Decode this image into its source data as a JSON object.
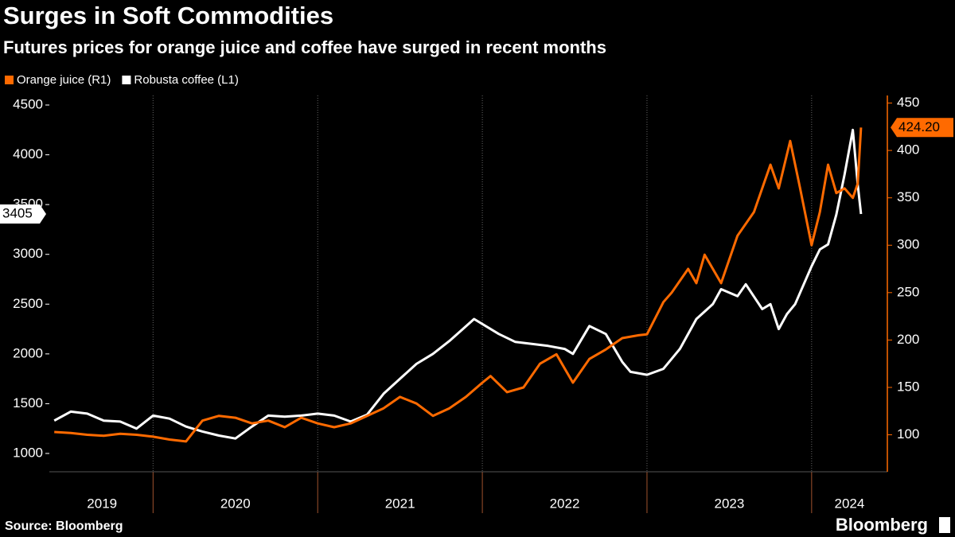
{
  "chart_data": {
    "type": "line",
    "title": "Surges in Soft Commodities",
    "subtitle": "Futures prices for orange juice and coffee have surged in recent months",
    "source": "Source: Bloomberg",
    "brand": "Bloomberg",
    "xlim": [
      2019.37,
      2024.46
    ],
    "xticks": [
      {
        "value": 2019.69,
        "label": "2019"
      },
      {
        "value": 2020.5,
        "label": "2020"
      },
      {
        "value": 2021.5,
        "label": "2021"
      },
      {
        "value": 2022.5,
        "label": "2022"
      },
      {
        "value": 2023.5,
        "label": "2023"
      },
      {
        "value": 2024.23,
        "label": "2024"
      }
    ],
    "year_boundaries": [
      2020,
      2021,
      2022,
      2023,
      2024
    ],
    "ylim": [
      816,
      4596
    ],
    "yticks": [
      1000,
      1500,
      2000,
      2500,
      3000,
      3500,
      4000,
      4500
    ],
    "y2lim": [
      61,
      458
    ],
    "y2ticks": [
      100,
      150,
      200,
      250,
      300,
      350,
      400,
      450
    ],
    "grid": true,
    "series": [
      {
        "name": "Orange juice (R1)",
        "color": "#ff6a00",
        "axis": "y2",
        "x": [
          2019.4,
          2019.5,
          2019.6,
          2019.7,
          2019.8,
          2019.9,
          2020.0,
          2020.1,
          2020.2,
          2020.3,
          2020.4,
          2020.5,
          2020.6,
          2020.7,
          2020.8,
          2020.9,
          2021.0,
          2021.1,
          2021.2,
          2021.3,
          2021.4,
          2021.5,
          2021.6,
          2021.7,
          2021.8,
          2021.9,
          2022.0,
          2022.05,
          2022.15,
          2022.25,
          2022.35,
          2022.45,
          2022.5,
          2022.55,
          2022.65,
          2022.75,
          2022.85,
          2022.95,
          2023.0,
          2023.1,
          2023.15,
          2023.25,
          2023.3,
          2023.35,
          2023.45,
          2023.55,
          2023.65,
          2023.75,
          2023.8,
          2023.87,
          2023.93,
          2024.0,
          2024.05,
          2024.1,
          2024.15,
          2024.2,
          2024.25,
          2024.28,
          2024.3
        ],
        "values": [
          103,
          102,
          100,
          99,
          101,
          100,
          98,
          95,
          93,
          115,
          120,
          118,
          112,
          115,
          108,
          118,
          112,
          108,
          112,
          120,
          128,
          140,
          133,
          120,
          128,
          140,
          155,
          162,
          145,
          150,
          175,
          185,
          170,
          155,
          180,
          190,
          202,
          205,
          206,
          240,
          250,
          275,
          260,
          290,
          260,
          310,
          335,
          385,
          360,
          410,
          360,
          300,
          335,
          385,
          355,
          360,
          350,
          365,
          424.2
        ]
      },
      {
        "name": "Robusta coffee (L1)",
        "color": "#ffffff",
        "axis": "y",
        "x": [
          2019.4,
          2019.5,
          2019.6,
          2019.7,
          2019.8,
          2019.9,
          2020.0,
          2020.1,
          2020.2,
          2020.3,
          2020.4,
          2020.5,
          2020.6,
          2020.7,
          2020.8,
          2020.9,
          2021.0,
          2021.1,
          2021.2,
          2021.3,
          2021.4,
          2021.5,
          2021.6,
          2021.7,
          2021.8,
          2021.95,
          2022.1,
          2022.2,
          2022.3,
          2022.4,
          2022.5,
          2022.55,
          2022.65,
          2022.75,
          2022.85,
          2022.9,
          2023.0,
          2023.1,
          2023.2,
          2023.3,
          2023.4,
          2023.45,
          2023.55,
          2023.6,
          2023.7,
          2023.75,
          2023.8,
          2023.85,
          2023.9,
          2024.0,
          2024.05,
          2024.1,
          2024.15,
          2024.2,
          2024.25,
          2024.28,
          2024.3
        ],
        "values": [
          1330,
          1420,
          1400,
          1330,
          1320,
          1250,
          1380,
          1350,
          1270,
          1220,
          1180,
          1150,
          1270,
          1380,
          1370,
          1380,
          1400,
          1380,
          1320,
          1390,
          1600,
          1750,
          1900,
          2000,
          2130,
          2350,
          2200,
          2120,
          2100,
          2080,
          2050,
          2000,
          2280,
          2200,
          1920,
          1820,
          1790,
          1850,
          2050,
          2350,
          2500,
          2650,
          2580,
          2700,
          2450,
          2500,
          2250,
          2400,
          2500,
          2880,
          3050,
          3100,
          3400,
          3800,
          4250,
          3700,
          3405
        ]
      }
    ],
    "annotations": [
      {
        "value": 3405,
        "axis": "y"
      },
      {
        "value": 424.2,
        "label": "424.20",
        "axis": "y2"
      }
    ]
  }
}
